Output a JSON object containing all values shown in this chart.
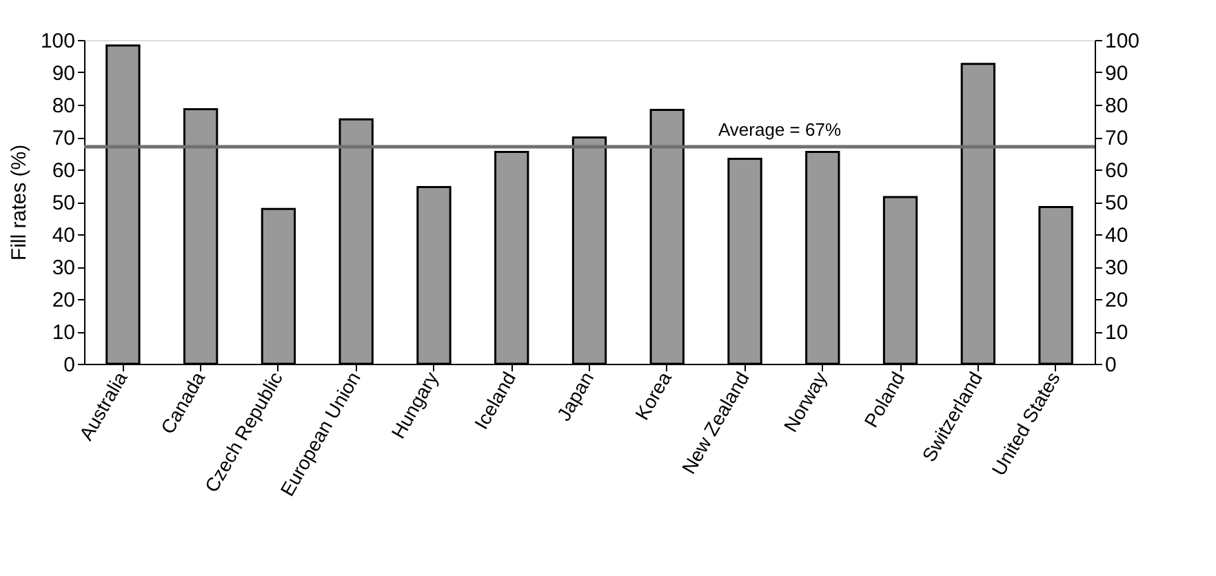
{
  "chart_data": {
    "type": "bar",
    "ylabel": "Fill rates (%)",
    "categories": [
      "Australia",
      "Canada",
      "Czech Republic",
      "European Union",
      "Hungary",
      "Iceland",
      "Japan",
      "Korea",
      "New Zealand",
      "Norway",
      "Poland",
      "Switzerland",
      "United States"
    ],
    "values": [
      98.3,
      78.6,
      47.8,
      75.5,
      54.6,
      65.4,
      69.9,
      78.4,
      63.3,
      65.4,
      51.5,
      92.6,
      48.4
    ],
    "color": "#999999",
    "ylim": [
      0,
      100
    ],
    "yticks": [
      0,
      10,
      20,
      30,
      40,
      50,
      60,
      70,
      80,
      90,
      100
    ],
    "y2lim": [
      0,
      100
    ],
    "y2ticks": [
      0,
      10,
      20,
      30,
      40,
      50,
      60,
      70,
      80,
      90,
      100
    ],
    "ref_lines": [
      {
        "axis": "y",
        "value": 67,
        "label": "Average = 67%",
        "color": "#707070"
      }
    ],
    "grid": false
  }
}
